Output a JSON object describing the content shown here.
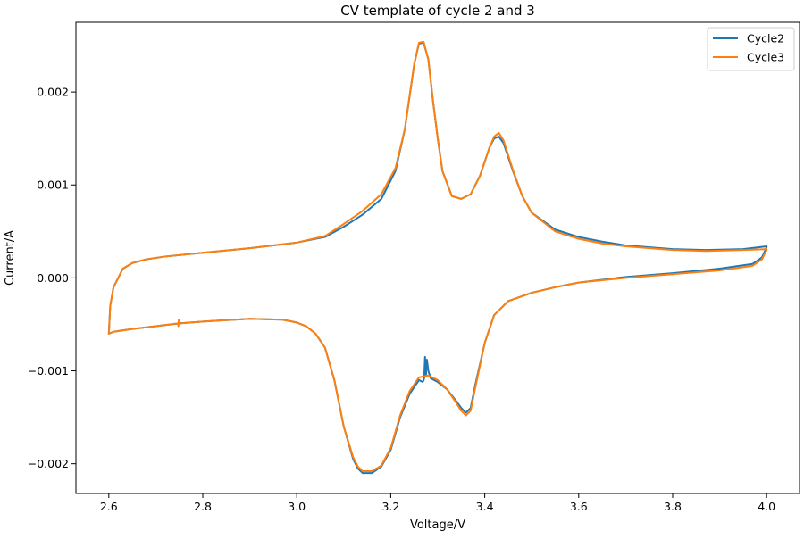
{
  "chart_data": {
    "type": "line",
    "title": "CV template of cycle 2 and 3",
    "xlabel": "Voltage/V",
    "ylabel": "Current/A",
    "xlim": [
      2.53,
      4.07
    ],
    "ylim": [
      -0.00232,
      0.00275
    ],
    "xticks": [
      2.6,
      2.8,
      3.0,
      3.2,
      3.4,
      3.6,
      3.8,
      4.0
    ],
    "xtick_labels": [
      "2.6",
      "2.8",
      "3.0",
      "3.2",
      "3.4",
      "3.6",
      "3.8",
      "4.0"
    ],
    "yticks": [
      -0.002,
      -0.001,
      0.0,
      0.001,
      0.002
    ],
    "ytick_labels": [
      "−0.002",
      "−0.001",
      "0.000",
      "0.001",
      "0.002"
    ],
    "grid": false,
    "legend_position": "top-right",
    "series": [
      {
        "name": "Cycle2",
        "color": "#1f77b4",
        "x": [
          2.6,
          2.603,
          2.61,
          2.62,
          2.63,
          2.65,
          2.68,
          2.72,
          2.8,
          2.9,
          3.0,
          3.06,
          3.1,
          3.14,
          3.18,
          3.21,
          3.23,
          3.25,
          3.26,
          3.27,
          3.28,
          3.29,
          3.3,
          3.31,
          3.33,
          3.35,
          3.37,
          3.39,
          3.41,
          3.42,
          3.43,
          3.44,
          3.45,
          3.46,
          3.48,
          3.5,
          3.55,
          3.6,
          3.65,
          3.7,
          3.8,
          3.87,
          3.95,
          4.0,
          4.0,
          3.99,
          3.97,
          3.9,
          3.8,
          3.7,
          3.6,
          3.55,
          3.5,
          3.45,
          3.42,
          3.4,
          3.38,
          3.37,
          3.36,
          3.35,
          3.34,
          3.32,
          3.3,
          3.285,
          3.28,
          3.277,
          3.275,
          3.273,
          3.271,
          3.27,
          3.268,
          3.26,
          3.24,
          3.22,
          3.2,
          3.18,
          3.16,
          3.14,
          3.13,
          3.12,
          3.1,
          3.08,
          3.06,
          3.04,
          3.02,
          3.0,
          2.97,
          2.9,
          2.8,
          2.75,
          2.7,
          2.65,
          2.61,
          2.6
        ],
        "y": [
          -0.0006,
          -0.0003,
          -0.0001,
          0.0,
          0.0001,
          0.00016,
          0.0002,
          0.00023,
          0.00027,
          0.00032,
          0.00038,
          0.00044,
          0.00055,
          0.00068,
          0.00085,
          0.00115,
          0.0016,
          0.0023,
          0.00252,
          0.00253,
          0.00235,
          0.0019,
          0.0015,
          0.00115,
          0.00088,
          0.00085,
          0.0009,
          0.0011,
          0.0014,
          0.0015,
          0.00152,
          0.00145,
          0.0013,
          0.00115,
          0.00088,
          0.0007,
          0.00052,
          0.00044,
          0.00039,
          0.00035,
          0.00031,
          0.0003,
          0.00031,
          0.00034,
          0.00033,
          0.00022,
          0.00015,
          0.0001,
          5e-05,
          1e-05,
          -5e-05,
          -0.0001,
          -0.00016,
          -0.00025,
          -0.0004,
          -0.0007,
          -0.00115,
          -0.0014,
          -0.00145,
          -0.0014,
          -0.00133,
          -0.0012,
          -0.00112,
          -0.00108,
          -0.001,
          -0.00088,
          -0.00105,
          -0.00085,
          -0.00108,
          -0.0011,
          -0.00112,
          -0.0011,
          -0.00125,
          -0.0015,
          -0.00185,
          -0.00203,
          -0.0021,
          -0.0021,
          -0.00205,
          -0.00195,
          -0.0016,
          -0.0011,
          -0.00075,
          -0.0006,
          -0.00052,
          -0.00048,
          -0.00045,
          -0.00044,
          -0.00047,
          -0.00049,
          -0.00052,
          -0.00055,
          -0.00058,
          -0.0006
        ]
      },
      {
        "name": "Cycle3",
        "color": "#ff7f0e",
        "x": [
          2.6,
          2.603,
          2.61,
          2.62,
          2.63,
          2.65,
          2.68,
          2.72,
          2.8,
          2.9,
          3.0,
          3.06,
          3.1,
          3.14,
          3.18,
          3.21,
          3.23,
          3.25,
          3.26,
          3.27,
          3.28,
          3.29,
          3.3,
          3.31,
          3.33,
          3.35,
          3.37,
          3.39,
          3.41,
          3.42,
          3.43,
          3.44,
          3.45,
          3.46,
          3.48,
          3.5,
          3.55,
          3.6,
          3.65,
          3.7,
          3.8,
          3.87,
          3.95,
          4.0,
          4.0,
          3.99,
          3.97,
          3.9,
          3.8,
          3.7,
          3.6,
          3.55,
          3.5,
          3.45,
          3.42,
          3.4,
          3.38,
          3.37,
          3.36,
          3.35,
          3.34,
          3.32,
          3.3,
          3.28,
          3.26,
          3.24,
          3.22,
          3.2,
          3.18,
          3.16,
          3.14,
          3.13,
          3.12,
          3.1,
          3.08,
          3.06,
          3.04,
          3.02,
          3.0,
          2.97,
          2.9,
          2.8,
          2.75,
          2.749,
          2.748,
          2.747,
          2.7,
          2.65,
          2.61,
          2.6
        ],
        "y": [
          -0.0006,
          -0.0003,
          -0.0001,
          0.0,
          0.0001,
          0.00016,
          0.0002,
          0.00023,
          0.00027,
          0.00032,
          0.00038,
          0.00045,
          0.00058,
          0.00072,
          0.0009,
          0.00118,
          0.0016,
          0.0023,
          0.00253,
          0.00254,
          0.00235,
          0.0019,
          0.0015,
          0.00115,
          0.00088,
          0.00085,
          0.0009,
          0.0011,
          0.0014,
          0.00152,
          0.00156,
          0.00148,
          0.00132,
          0.00116,
          0.00088,
          0.0007,
          0.0005,
          0.00042,
          0.00037,
          0.00034,
          0.0003,
          0.00029,
          0.0003,
          0.00031,
          0.0003,
          0.0002,
          0.00013,
          8e-05,
          4e-05,
          0.0,
          -5e-05,
          -0.0001,
          -0.00016,
          -0.00025,
          -0.0004,
          -0.0007,
          -0.00118,
          -0.00143,
          -0.00148,
          -0.00143,
          -0.00135,
          -0.0012,
          -0.0011,
          -0.00105,
          -0.00107,
          -0.00122,
          -0.00148,
          -0.00183,
          -0.00202,
          -0.00208,
          -0.00208,
          -0.00203,
          -0.00193,
          -0.0016,
          -0.0011,
          -0.00075,
          -0.0006,
          -0.00052,
          -0.00048,
          -0.00045,
          -0.00044,
          -0.00047,
          -0.00049,
          -0.00045,
          -0.00052,
          -0.00049,
          -0.00052,
          -0.00055,
          -0.00058,
          -0.0006
        ]
      }
    ]
  }
}
